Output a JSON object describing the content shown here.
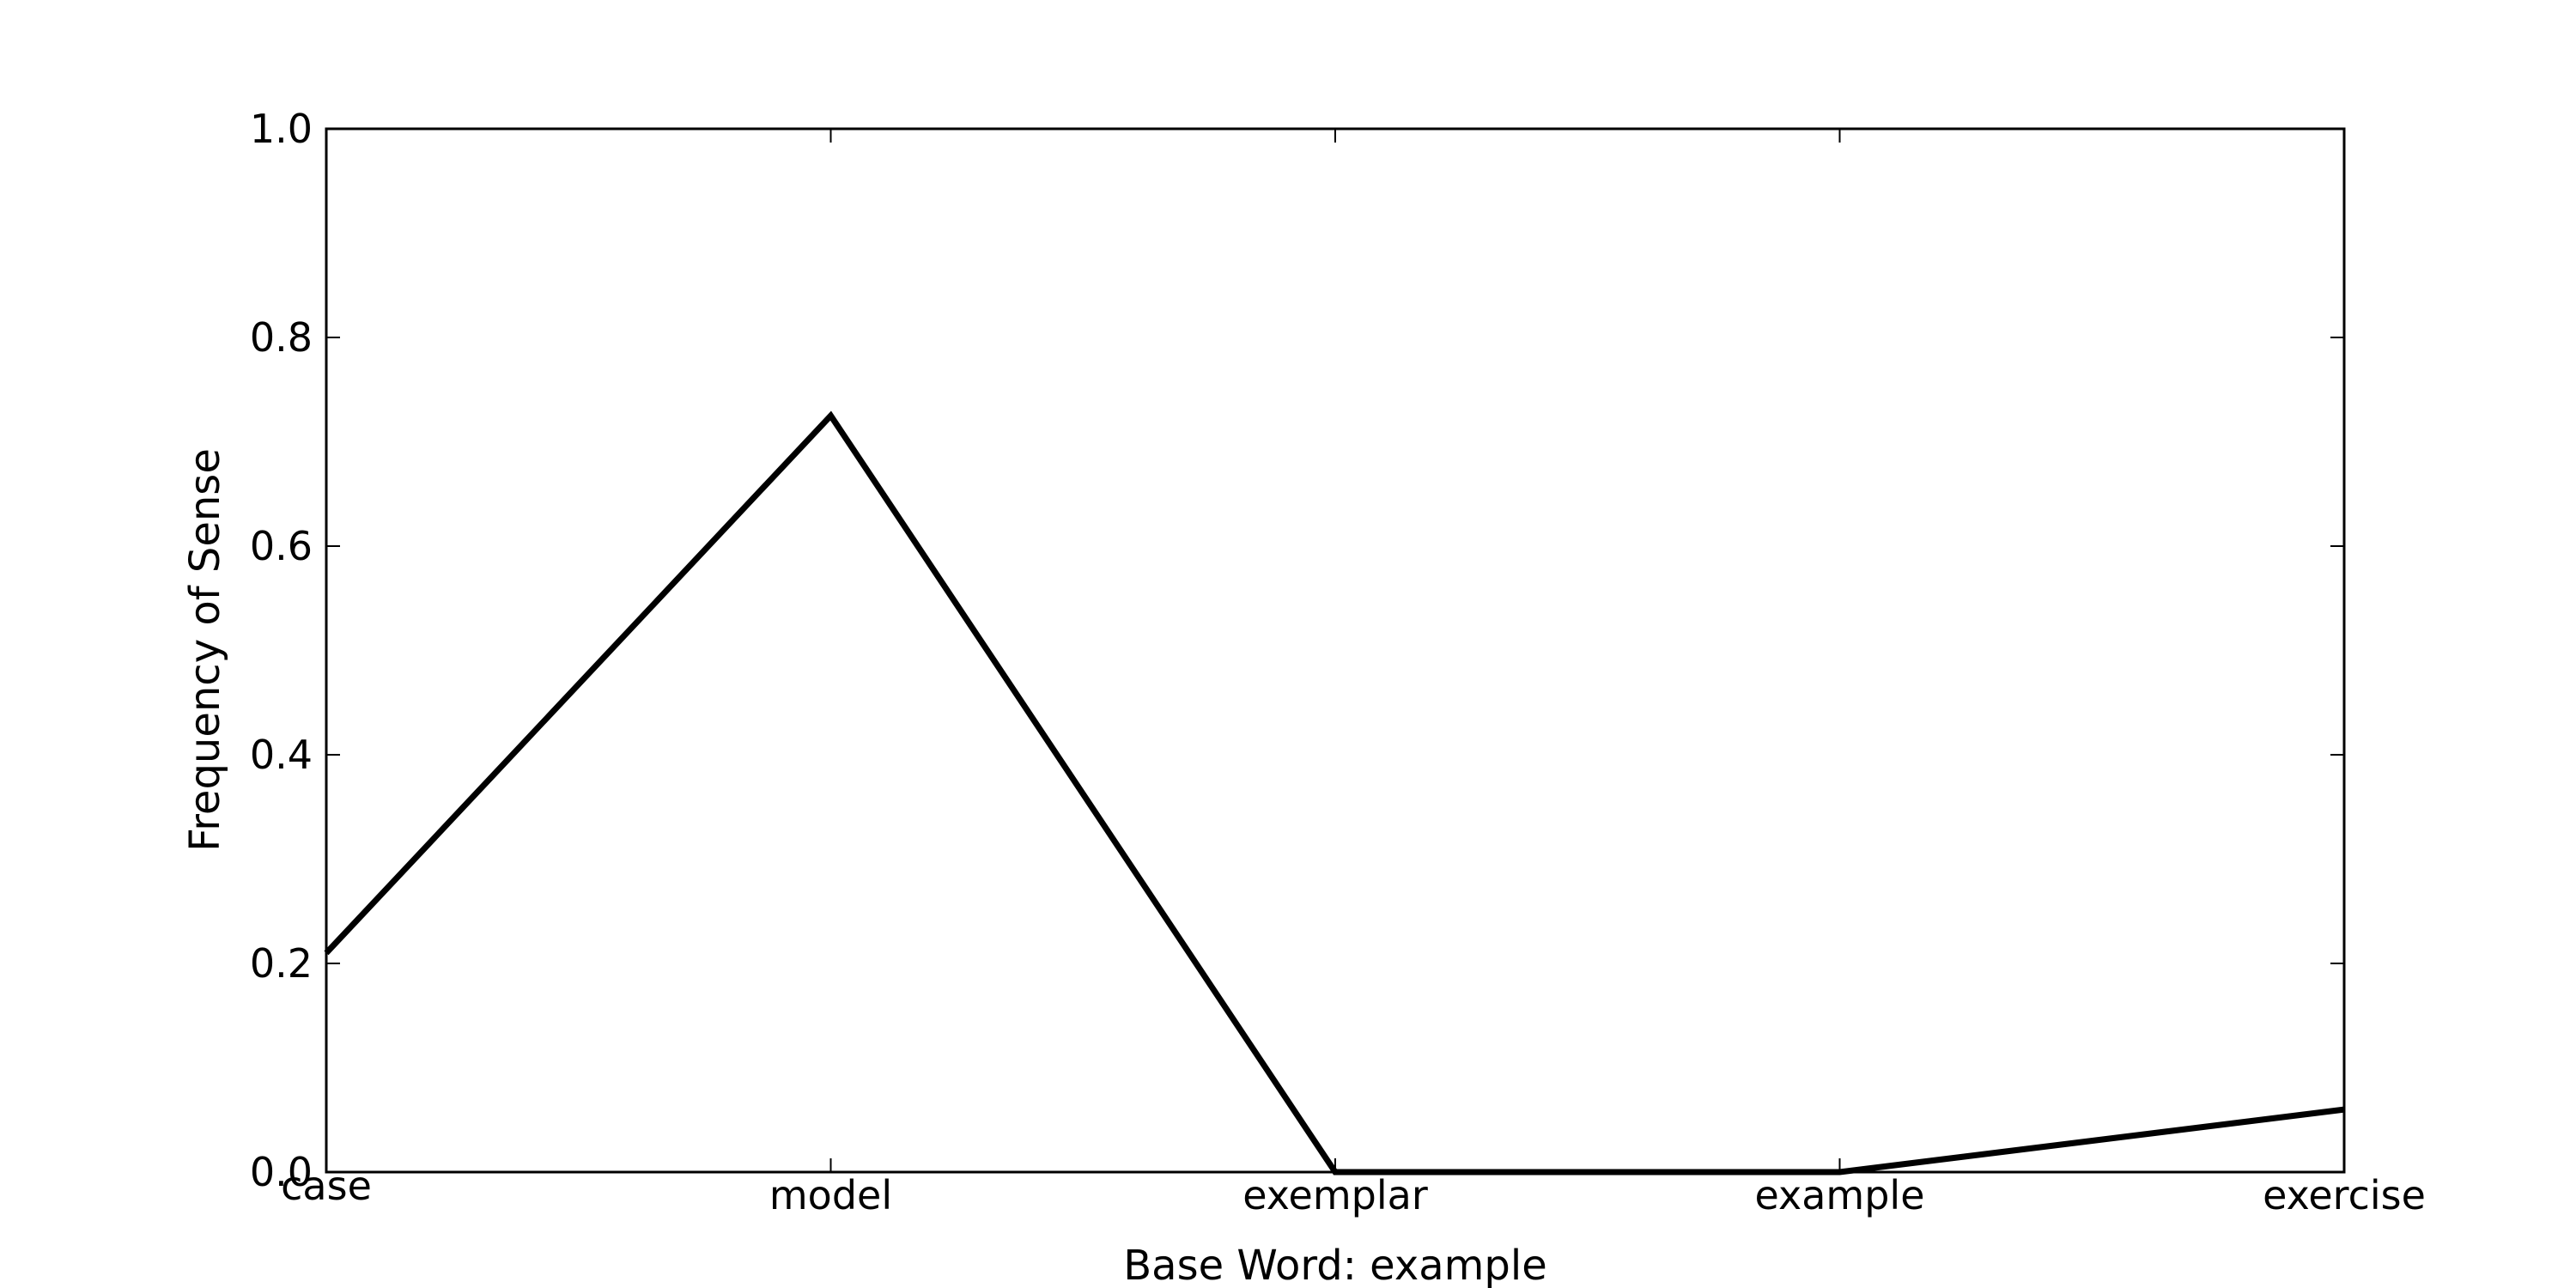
{
  "chart_data": {
    "type": "line",
    "title": "",
    "xlabel": "Base Word: example",
    "ylabel": "Frequency of Sense",
    "categories": [
      "case",
      "model",
      "exemplar",
      "example",
      "exercise"
    ],
    "series": [
      {
        "name": "Frequency of Sense",
        "values": [
          0.21,
          0.725,
          0.0,
          0.0,
          0.06
        ],
        "color": "#000000"
      }
    ],
    "ylim": [
      0.0,
      1.0
    ],
    "yticks": [
      0.0,
      0.2,
      0.4,
      0.6,
      0.8,
      1.0
    ],
    "ytick_labels": [
      "0.0",
      "0.2",
      "0.4",
      "0.6",
      "0.8",
      "1.0"
    ],
    "grid": false,
    "legend": "none"
  }
}
